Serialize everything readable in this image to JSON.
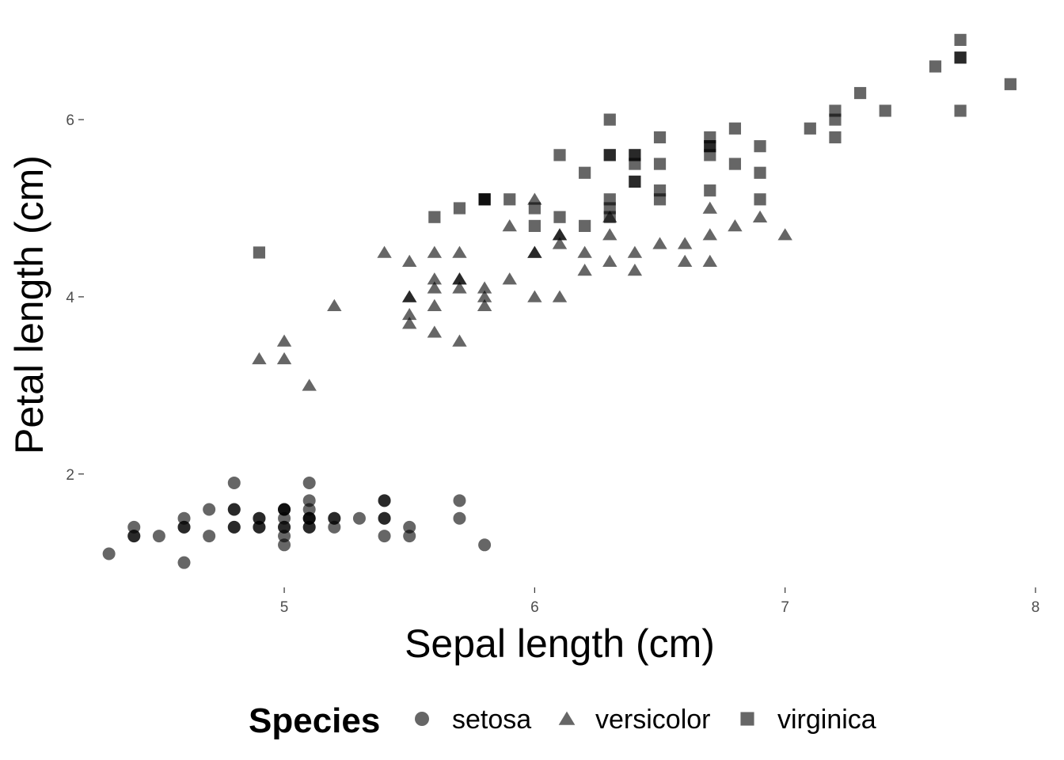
{
  "chart_data": {
    "type": "scatter",
    "xlabel": "Sepal length (cm)",
    "ylabel": "Petal length (cm)",
    "xlim": [
      4.2,
      8.0
    ],
    "ylim": [
      0.72,
      7.1
    ],
    "x_ticks": [
      5,
      6,
      7,
      8
    ],
    "y_ticks": [
      2,
      4,
      6
    ],
    "grid": false,
    "point_color": "#000000",
    "point_opacity": 0.6,
    "legend": {
      "title": "Species",
      "position": "bottom"
    },
    "series": [
      {
        "name": "setosa",
        "marker": "circle",
        "x": [
          5.1,
          4.9,
          4.7,
          4.6,
          5.0,
          5.4,
          4.6,
          5.0,
          4.4,
          4.9,
          5.4,
          4.8,
          4.8,
          4.3,
          5.8,
          5.7,
          5.4,
          5.1,
          5.7,
          5.1,
          5.4,
          5.1,
          4.6,
          5.1,
          4.8,
          5.0,
          5.0,
          5.2,
          5.2,
          4.7,
          4.8,
          5.4,
          5.2,
          5.5,
          4.9,
          5.0,
          5.5,
          4.9,
          4.4,
          5.1,
          5.0,
          4.5,
          4.4,
          5.0,
          5.1,
          4.8,
          5.1,
          4.6,
          5.3,
          5.0
        ],
        "y": [
          1.4,
          1.4,
          1.3,
          1.5,
          1.4,
          1.7,
          1.4,
          1.5,
          1.4,
          1.5,
          1.5,
          1.6,
          1.4,
          1.1,
          1.2,
          1.5,
          1.3,
          1.4,
          1.7,
          1.5,
          1.7,
          1.5,
          1.0,
          1.7,
          1.9,
          1.6,
          1.6,
          1.5,
          1.4,
          1.6,
          1.6,
          1.5,
          1.5,
          1.4,
          1.5,
          1.2,
          1.3,
          1.4,
          1.3,
          1.5,
          1.3,
          1.3,
          1.3,
          1.6,
          1.9,
          1.4,
          1.6,
          1.4,
          1.5,
          1.4
        ]
      },
      {
        "name": "versicolor",
        "marker": "triangle",
        "x": [
          7.0,
          6.4,
          6.9,
          5.5,
          6.5,
          5.7,
          6.3,
          4.9,
          6.6,
          5.2,
          5.0,
          5.9,
          6.0,
          6.1,
          5.6,
          6.7,
          5.6,
          5.8,
          6.2,
          5.6,
          5.9,
          6.1,
          6.3,
          6.1,
          6.4,
          6.6,
          6.8,
          6.7,
          6.0,
          5.7,
          5.5,
          5.5,
          5.8,
          6.0,
          5.4,
          6.0,
          6.7,
          6.3,
          5.6,
          5.5,
          5.5,
          6.1,
          5.8,
          5.0,
          5.6,
          5.7,
          5.7,
          6.2,
          5.1,
          5.7
        ],
        "y": [
          4.7,
          4.5,
          4.9,
          4.0,
          4.6,
          4.5,
          4.7,
          3.3,
          4.6,
          3.9,
          3.5,
          4.2,
          4.0,
          4.7,
          3.6,
          4.4,
          4.5,
          4.1,
          4.5,
          3.9,
          4.8,
          4.0,
          4.9,
          4.7,
          4.3,
          4.4,
          4.8,
          5.0,
          4.5,
          3.5,
          3.8,
          3.7,
          3.9,
          5.1,
          4.5,
          4.5,
          4.7,
          4.4,
          4.1,
          4.0,
          4.4,
          4.6,
          4.0,
          3.3,
          4.2,
          4.2,
          4.2,
          4.3,
          3.0,
          4.1
        ]
      },
      {
        "name": "virginica",
        "marker": "square",
        "x": [
          6.3,
          5.8,
          7.1,
          6.3,
          6.5,
          7.6,
          4.9,
          7.3,
          6.7,
          7.2,
          6.5,
          6.4,
          6.8,
          5.7,
          5.8,
          6.4,
          6.5,
          7.7,
          7.7,
          6.0,
          6.9,
          5.6,
          7.7,
          6.3,
          6.7,
          7.2,
          6.2,
          6.1,
          6.4,
          7.2,
          7.4,
          7.9,
          6.4,
          6.3,
          6.1,
          7.7,
          6.3,
          6.4,
          6.0,
          6.9,
          6.7,
          6.9,
          5.8,
          6.8,
          6.7,
          6.7,
          6.3,
          6.5,
          6.2,
          5.9
        ],
        "y": [
          6.0,
          5.1,
          5.9,
          5.6,
          5.8,
          6.6,
          4.5,
          6.3,
          5.8,
          6.1,
          5.1,
          5.3,
          5.5,
          5.0,
          5.1,
          5.3,
          5.5,
          6.7,
          6.9,
          5.0,
          5.7,
          4.9,
          6.7,
          4.9,
          5.7,
          6.0,
          4.8,
          4.9,
          5.6,
          5.8,
          6.1,
          6.4,
          5.6,
          5.1,
          5.6,
          6.1,
          5.6,
          5.5,
          4.8,
          5.4,
          5.6,
          5.1,
          5.1,
          5.9,
          5.7,
          5.2,
          5.0,
          5.2,
          5.4,
          5.1
        ]
      }
    ]
  }
}
